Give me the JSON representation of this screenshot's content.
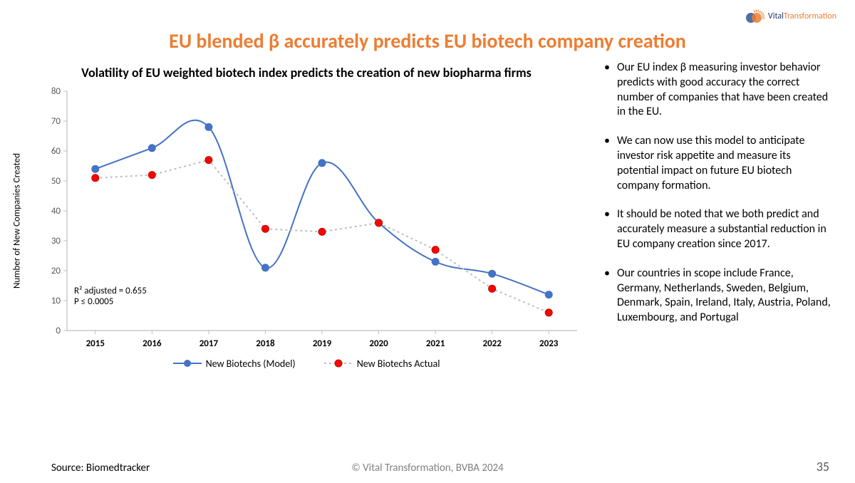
{
  "brand": {
    "name": "VitalTransformation",
    "text_color_a": "#1f3864",
    "text_color_b": "#ed7d31",
    "circle_left": "#2f5597",
    "circle_right": "#ed7d31",
    "ray_color": "#ed7d31"
  },
  "title": {
    "text": "EU blended β accurately predicts EU biotech company creation",
    "color": "#ed7d31"
  },
  "chart": {
    "subtitle": "Volatility of EU weighted biotech index predicts the creation of new biopharma firms",
    "y_axis_label": "Number of New Companies Created",
    "type": "line",
    "categories": [
      "2015",
      "2016",
      "2017",
      "2018",
      "2019",
      "2020",
      "2021",
      "2022",
      "2023"
    ],
    "series": [
      {
        "name": "New Biotechs (Model)",
        "values": [
          54,
          61,
          68,
          21,
          56,
          36,
          23,
          19,
          12
        ],
        "line_color": "#4472c4",
        "marker_color": "#4472c4",
        "marker_border": "#4472c4",
        "dash": "none",
        "line_width": 2,
        "marker_r": 5,
        "smooth": true
      },
      {
        "name": "New Biotechs Actual",
        "values": [
          51,
          52,
          57,
          34,
          33,
          36,
          27,
          14,
          6
        ],
        "line_color": "#bfbfbf",
        "marker_color": "#ff0000",
        "marker_border": "#c00000",
        "dash": "3 4",
        "line_width": 2,
        "marker_r": 5,
        "smooth": false
      }
    ],
    "ylim": [
      0,
      80
    ],
    "ytick_step": 10,
    "axis_color": "#bfbfbf",
    "tick_label_color": "#595959",
    "tick_fontsize": 13,
    "background": "#ffffff",
    "stats": {
      "line1": "R² adjusted = 0.655",
      "line2": "P ≤ 0.0005"
    }
  },
  "bullets": [
    "Our EU index β measuring investor behavior predicts with good accuracy the correct number of companies that have been created in the EU.",
    "We can now use this model to anticipate investor risk appetite and measure its potential impact on future EU biotech company formation.",
    "It should be noted that we both predict and accurately measure a substantial reduction in EU company creation since 2017.",
    "Our countries in scope include France, Germany, Netherlands, Sweden, Belgium, Denmark, Spain, Ireland, Italy, Austria, Poland, Luxembourg, and Portugal"
  ],
  "footer": {
    "source": "Source: Biomedtracker",
    "copyright": "© Vital Transformation, BVBA 2024",
    "page": "35"
  }
}
